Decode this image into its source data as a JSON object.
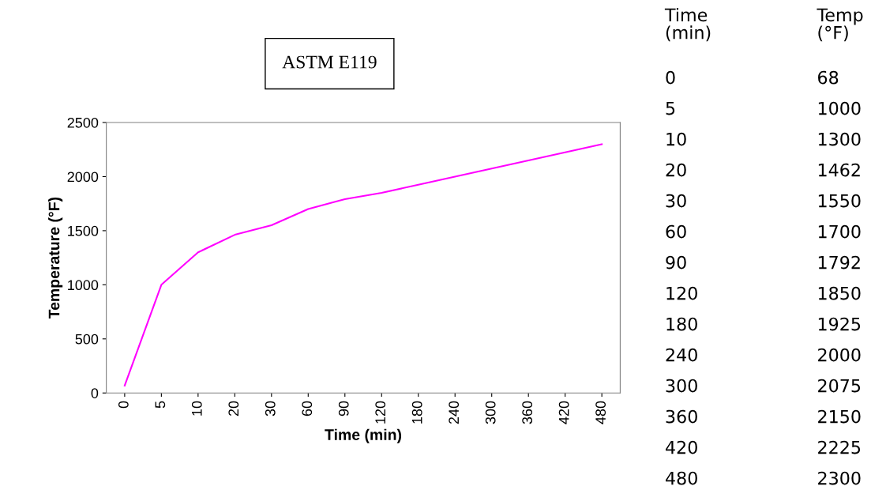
{
  "chart_data": [
    {
      "type": "line",
      "title": "ASTM E119",
      "xlabel": "Time (min)",
      "ylabel": "Temperature (°F)",
      "categories": [
        "0",
        "5",
        "10",
        "20",
        "30",
        "60",
        "90",
        "120",
        "180",
        "240",
        "300",
        "360",
        "420",
        "480"
      ],
      "series": [
        {
          "color": "#ff00ff",
          "values": [
            68,
            1000,
            1300,
            1462,
            1550,
            1700,
            1792,
            1850,
            1925,
            2000,
            2075,
            2150,
            2225,
            2300
          ]
        }
      ],
      "ylim": [
        0,
        2500
      ],
      "yticks": [
        0,
        500,
        1000,
        1500,
        2000,
        2500
      ],
      "grid": false,
      "legend": false,
      "marker": "none",
      "line_style": "solid"
    },
    {
      "type": "other",
      "annotations": [
        "Time\n(min)",
        "Temp\n(°F)",
        "0",
        "68",
        "5",
        "1000",
        "10",
        "1300",
        "20",
        "1462",
        "30",
        "1550",
        "60",
        "1700",
        "90",
        "1792",
        "120",
        "1850",
        "180",
        "1925",
        "240",
        "2000",
        "300",
        "2075",
        "360",
        "2150",
        "420",
        "2225",
        "480",
        "2300"
      ]
    }
  ]
}
